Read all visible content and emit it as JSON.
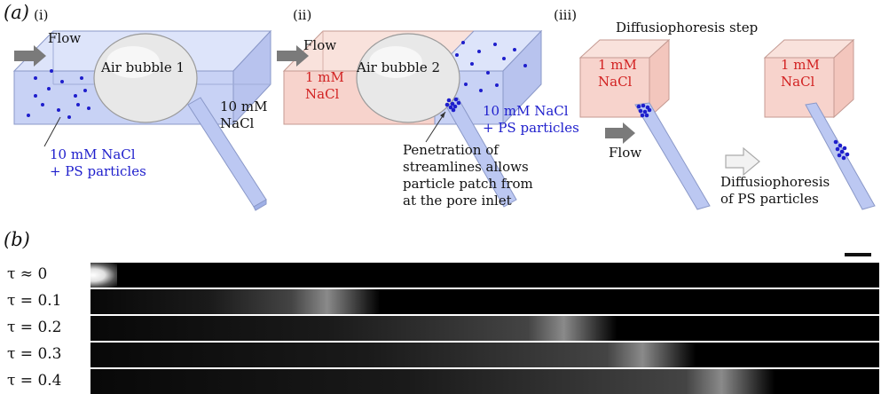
{
  "panel_a": {
    "letter": "(a)",
    "sub_i": "(i)",
    "sub_ii": "(ii)",
    "sub_iii": "(iii)",
    "flow_1": "Flow",
    "flow_2": "Flow",
    "flow_3": "Flow",
    "bubble_1": "Air bubble 1",
    "bubble_2": "Air bubble 2",
    "pore_1_line1": "10 mM",
    "pore_1_line2": "NaCl",
    "channel_1_line1": "10 mM NaCl",
    "channel_1_line2": "+ PS particles",
    "channel_2_line1": "1 mM",
    "channel_2_line2": "NaCl",
    "pore_2_line1": "10 mM NaCl",
    "pore_2_line2": "+ PS particles",
    "note_line1": "Penetration of",
    "note_line2": "streamlines allows",
    "note_line3": "particle patch from",
    "note_line4": "at the pore inlet",
    "step_title": "Diffusiophoresis step",
    "box_a_line1": "1 mM",
    "box_a_line2": "NaCl",
    "box_b_line1": "1 mM",
    "box_b_line2": "NaCl",
    "dp_line1": "Diffusiophoresis",
    "dp_line2": "of PS particles"
  },
  "panel_b": {
    "letter": "(b)",
    "rows": [
      {
        "label": "τ ≈ 0",
        "front": 0.0
      },
      {
        "label": "τ = 0.1",
        "front": 0.3
      },
      {
        "label": "τ = 0.2",
        "front": 0.6
      },
      {
        "label": "τ = 0.3",
        "front": 0.7
      },
      {
        "label": "τ = 0.4",
        "front": 0.8
      }
    ]
  },
  "colors": {
    "particle_blue": "#1e1ecc",
    "salt_red": "#d22222",
    "channel_blue": "#c8d2f5",
    "channel_pink": "#f7d3cc"
  }
}
